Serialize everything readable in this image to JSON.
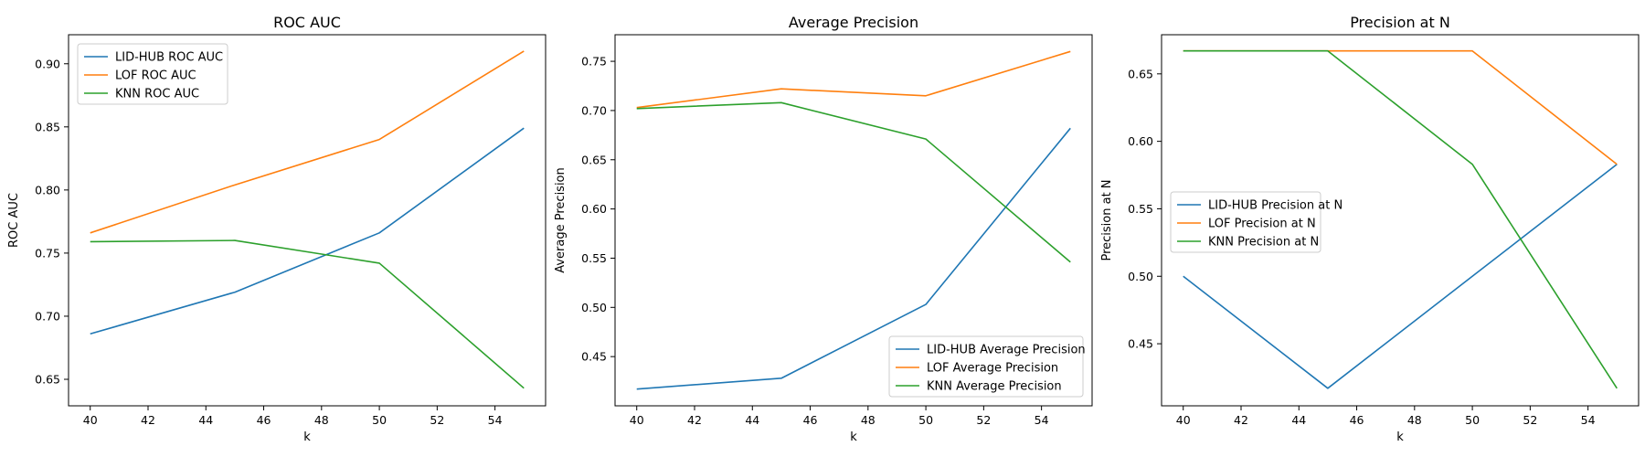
{
  "chart_data": [
    {
      "type": "line",
      "title": "ROC AUC",
      "xlabel": "k",
      "ylabel": "ROC AUC",
      "x": [
        40,
        45,
        50,
        55
      ],
      "xlim": [
        39.25,
        55.75
      ],
      "ylim": [
        0.629,
        0.923
      ],
      "xticks": [
        40,
        42,
        44,
        46,
        48,
        50,
        52,
        54
      ],
      "yticks": [
        0.65,
        0.7,
        0.75,
        0.8,
        0.85,
        0.9
      ],
      "ytick_decimals": 2,
      "grid": false,
      "legend_position": "upper left",
      "series": [
        {
          "name": "LID-HUB ROC AUC",
          "color": "#1f77b4",
          "values": [
            0.686,
            0.719,
            0.766,
            0.849
          ]
        },
        {
          "name": "LOF ROC AUC",
          "color": "#ff7f0e",
          "values": [
            0.766,
            0.804,
            0.84,
            0.91
          ]
        },
        {
          "name": "KNN ROC AUC",
          "color": "#2ca02c",
          "values": [
            0.759,
            0.76,
            0.742,
            0.643
          ]
        }
      ]
    },
    {
      "type": "line",
      "title": "Average Precision",
      "xlabel": "k",
      "ylabel": "Average Precision",
      "x": [
        40,
        45,
        50,
        55
      ],
      "xlim": [
        39.25,
        55.75
      ],
      "ylim": [
        0.4,
        0.777
      ],
      "xticks": [
        40,
        42,
        44,
        46,
        48,
        50,
        52,
        54
      ],
      "yticks": [
        0.45,
        0.5,
        0.55,
        0.6,
        0.65,
        0.7,
        0.75
      ],
      "ytick_decimals": 2,
      "grid": false,
      "legend_position": "lower right",
      "series": [
        {
          "name": "LID-HUB Average Precision",
          "color": "#1f77b4",
          "values": [
            0.417,
            0.428,
            0.503,
            0.682
          ]
        },
        {
          "name": "LOF Average Precision",
          "color": "#ff7f0e",
          "values": [
            0.703,
            0.722,
            0.715,
            0.76
          ]
        },
        {
          "name": "KNN Average Precision",
          "color": "#2ca02c",
          "values": [
            0.702,
            0.708,
            0.671,
            0.546
          ]
        }
      ]
    },
    {
      "type": "line",
      "title": "Precision at N",
      "xlabel": "k",
      "ylabel": "Precision at N",
      "x": [
        40,
        45,
        50,
        55
      ],
      "xlim": [
        39.25,
        55.75
      ],
      "ylim": [
        0.404,
        0.679
      ],
      "xticks": [
        40,
        42,
        44,
        46,
        48,
        50,
        52,
        54
      ],
      "yticks": [
        0.45,
        0.5,
        0.55,
        0.6,
        0.65
      ],
      "ytick_decimals": 2,
      "grid": false,
      "legend_position": "center left",
      "series": [
        {
          "name": "LID-HUB Precision at N",
          "color": "#1f77b4",
          "values": [
            0.5,
            0.417,
            0.5,
            0.583
          ]
        },
        {
          "name": "LOF Precision at N",
          "color": "#ff7f0e",
          "values": [
            0.667,
            0.667,
            0.667,
            0.583
          ]
        },
        {
          "name": "KNN Precision at N",
          "color": "#2ca02c",
          "values": [
            0.667,
            0.667,
            0.583,
            0.417
          ]
        }
      ]
    }
  ]
}
